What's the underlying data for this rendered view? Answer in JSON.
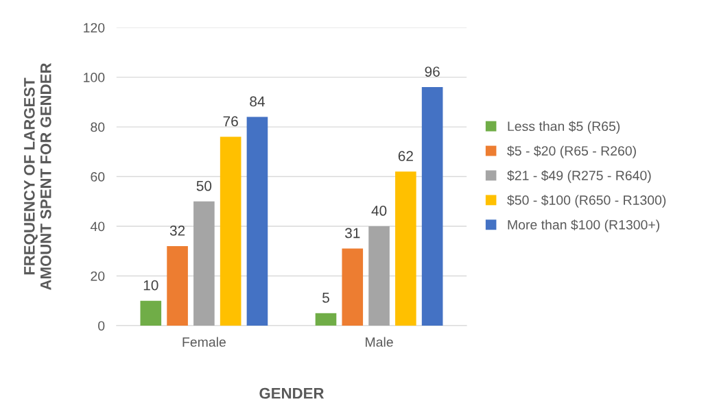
{
  "chart_data": {
    "type": "bar",
    "xlabel": "GENDER",
    "ylabel": "FREQUENCY OF LARGEST\nAMOUNT SPENT FOR GENDER",
    "categories": [
      "Female",
      "Male"
    ],
    "series": [
      {
        "name": "Less than $5 (R65)",
        "color": "#70ad47",
        "values": [
          10,
          5
        ]
      },
      {
        "name": "$5 - $20 (R65 - R260)",
        "color": "#ed7d31",
        "values": [
          32,
          31
        ]
      },
      {
        "name": "$21 - $49 (R275 - R640)",
        "color": "#a5a5a5",
        "values": [
          50,
          40
        ]
      },
      {
        "name": "$50 - $100 (R650 - R1300)",
        "color": "#ffc000",
        "values": [
          76,
          62
        ]
      },
      {
        "name": "More than $100 (R1300+)",
        "color": "#4472c4",
        "values": [
          84,
          96
        ]
      }
    ],
    "ylim": [
      0,
      120
    ],
    "yticks": [
      0,
      20,
      40,
      60,
      80,
      100,
      120
    ],
    "grid": "y",
    "legend": "right",
    "data_labels": true
  }
}
